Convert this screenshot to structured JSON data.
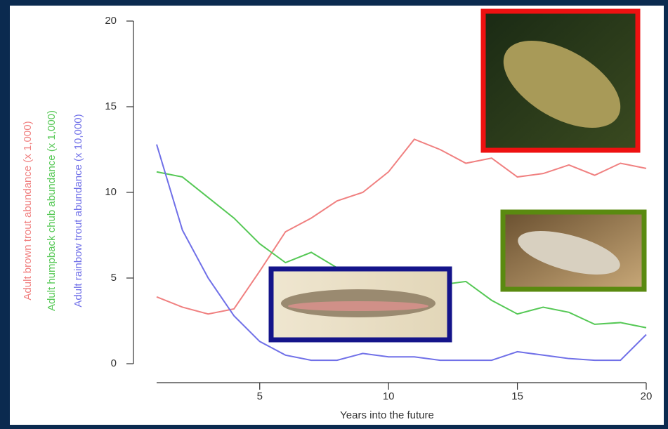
{
  "chart_data": {
    "type": "line",
    "x": [
      1,
      2,
      3,
      4,
      5,
      6,
      7,
      8,
      9,
      10,
      11,
      12,
      13,
      14,
      15,
      16,
      17,
      18,
      19,
      20
    ],
    "series": [
      {
        "name": "Adult brown trout abundance (x 1,000)",
        "color": "#f08080",
        "values": [
          3.9,
          3.3,
          2.9,
          3.2,
          5.4,
          7.7,
          8.5,
          9.5,
          10.0,
          11.2,
          13.1,
          12.5,
          11.7,
          12.0,
          10.9,
          11.1,
          11.6,
          11.0,
          11.7,
          11.4
        ]
      },
      {
        "name": "Adult humpback chub abundance (x 1,000)",
        "color": "#55c855",
        "values": [
          11.2,
          10.9,
          9.7,
          8.5,
          7.0,
          5.9,
          6.5,
          5.6,
          5.5,
          5.3,
          5.0,
          4.6,
          4.8,
          3.7,
          2.9,
          3.3,
          3.0,
          2.3,
          2.4,
          2.1
        ]
      },
      {
        "name": "Adult rainbow trout abundance (x 10,000)",
        "color": "#7070e8",
        "values": [
          12.8,
          7.8,
          5.0,
          2.8,
          1.3,
          0.5,
          0.2,
          0.2,
          0.6,
          0.4,
          0.4,
          0.2,
          0.2,
          0.2,
          0.7,
          0.5,
          0.3,
          0.2,
          0.2,
          1.7
        ]
      }
    ],
    "x_label": "Years into the future",
    "xlim": [
      1,
      20
    ],
    "xticks": [
      5,
      10,
      15,
      20
    ],
    "ylim": [
      0,
      20
    ],
    "yticks": [
      0,
      5,
      10,
      15,
      20
    ]
  }
}
